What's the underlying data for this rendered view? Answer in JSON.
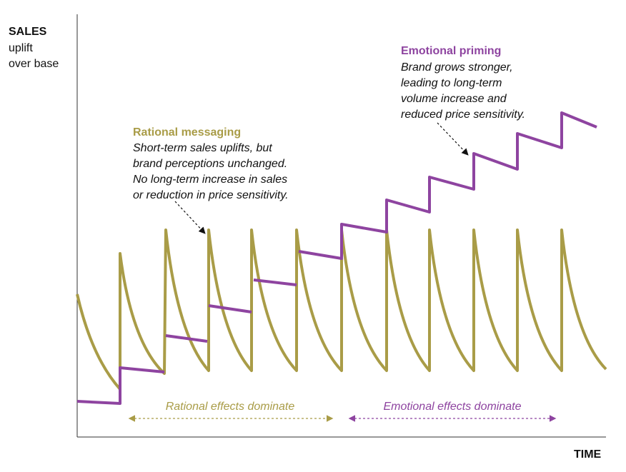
{
  "y_axis_label": [
    "SALES",
    "uplift",
    "over base"
  ],
  "x_axis_label": "TIME",
  "rational": {
    "title": "Rational messaging",
    "lines": [
      "Short-term sales uplifts, but",
      "brand perceptions unchanged.",
      "No long-term increase in sales",
      "or reduction in price sensitivity."
    ],
    "range_label": "Rational effects dominate"
  },
  "emotional": {
    "title": "Emotional priming",
    "lines": [
      "Brand grows stronger,",
      "leading to long-term",
      "volume increase and",
      "reduced price sensitivity."
    ],
    "range_label": "Emotional effects dominate"
  }
}
